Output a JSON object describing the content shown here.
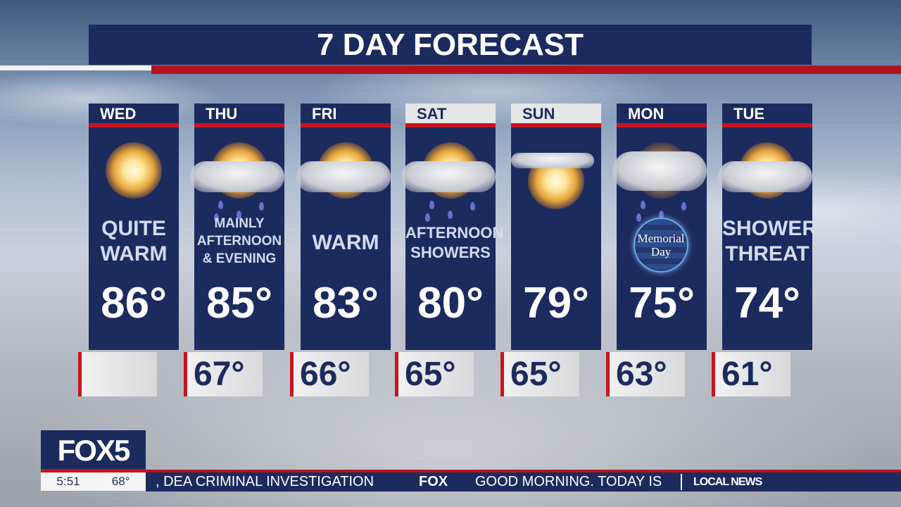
{
  "title": "7 DAY FORECAST",
  "days": [
    {
      "day": "WED",
      "desc": [
        "QUITE",
        "WARM"
      ],
      "high": "86°",
      "low": "",
      "icon": "sunny",
      "header_highlight": false
    },
    {
      "day": "THU",
      "desc": [
        "MAINLY",
        "AFTERNOON",
        "& EVENING"
      ],
      "high": "85°",
      "low": "67°",
      "icon": "partly-cloudy-rain",
      "header_highlight": false
    },
    {
      "day": "FRI",
      "desc": [
        "WARM"
      ],
      "high": "83°",
      "low": "66°",
      "icon": "partly-cloudy",
      "header_highlight": false
    },
    {
      "day": "SAT",
      "desc": [
        "AFTERNOON",
        "SHOWERS"
      ],
      "high": "80°",
      "low": "65°",
      "icon": "partly-cloudy-rain",
      "header_highlight": true
    },
    {
      "day": "SUN",
      "desc": [],
      "high": "79°",
      "low": "65°",
      "icon": "mostly-sunny",
      "header_highlight": true
    },
    {
      "day": "MON",
      "desc": [],
      "badge": [
        "Memorial",
        "Day"
      ],
      "high": "75°",
      "low": "63°",
      "icon": "cloudy-rain",
      "header_highlight": false
    },
    {
      "day": "TUE",
      "desc": [
        "SHOWER",
        "THREAT"
      ],
      "high": "74°",
      "low": "61°",
      "icon": "partly-cloudy",
      "header_highlight": false
    }
  ],
  "station": {
    "logo": "FOX5",
    "time": "5:51",
    "temp": "68°"
  },
  "ticker": {
    "text1": ", DEA CRIMINAL INVESTIGATION",
    "brand": "FOX",
    "text2": "GOOD MORNING. TODAY IS",
    "section": "LOCAL NEWS"
  },
  "colors": {
    "navy": "#1c2b5e",
    "red": "#c8141f"
  }
}
